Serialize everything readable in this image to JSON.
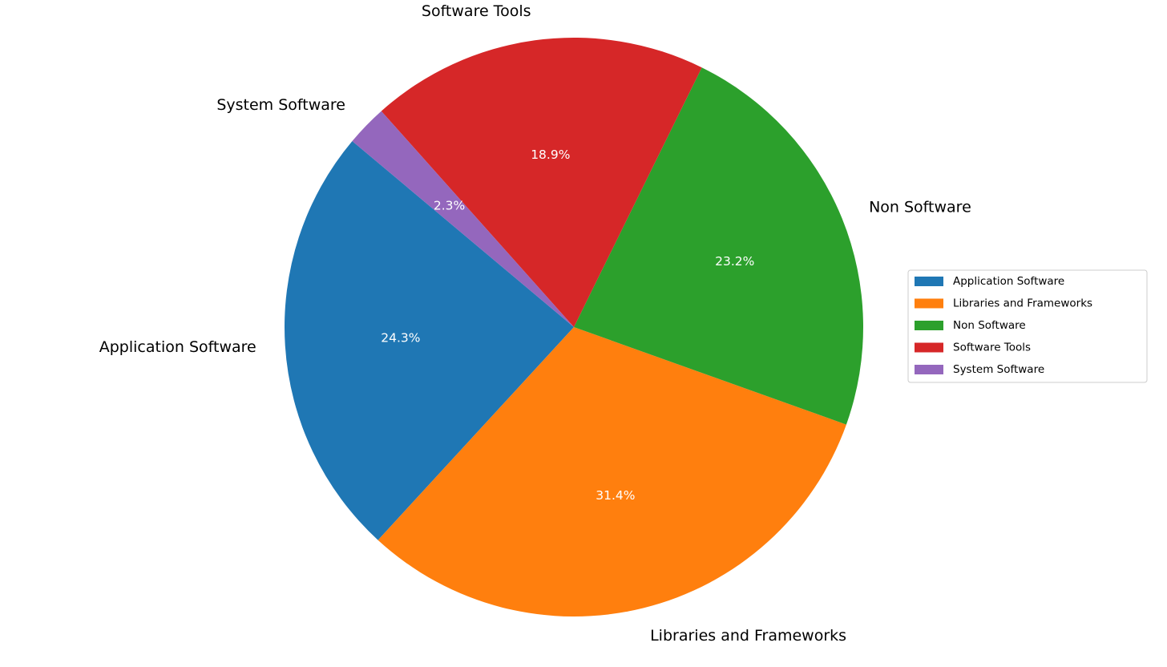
{
  "chart_data": {
    "type": "pie",
    "categories": [
      "Application Software",
      "Libraries and Frameworks",
      "Non Software",
      "Software Tools",
      "System Software"
    ],
    "values": [
      24.3,
      31.4,
      23.2,
      18.9,
      2.3
    ],
    "value_labels": [
      "24.3%",
      "31.4%",
      "23.2%",
      "18.9%",
      "2.3%"
    ],
    "colors": [
      "#1f77b4",
      "#ff7f0e",
      "#2ca02c",
      "#d62728",
      "#9467bd"
    ],
    "legend": "center right"
  }
}
